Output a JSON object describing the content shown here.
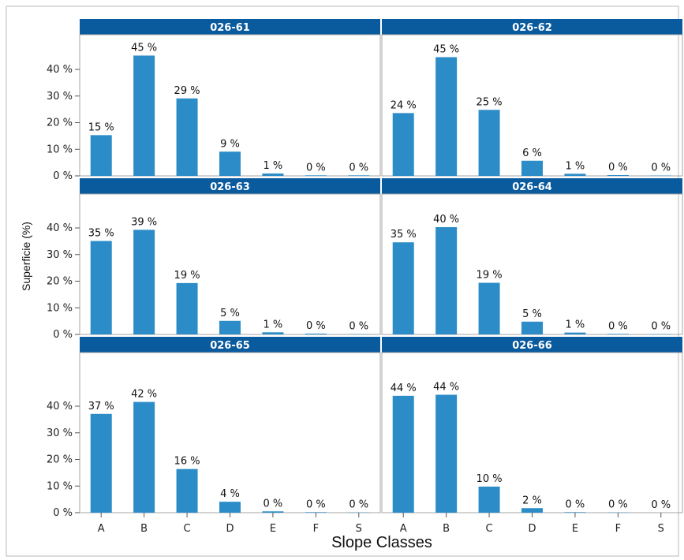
{
  "chart_data": {
    "type": "bar",
    "layout": "facet-grid-3x2",
    "xlabel": "Slope Classes",
    "ylabel": "Superficie (%)",
    "categories": [
      "A",
      "B",
      "C",
      "D",
      "E",
      "F",
      "S"
    ],
    "ylim": [
      0,
      50
    ],
    "yticks": [
      0,
      10,
      20,
      30,
      40
    ],
    "ytick_suffix": " %",
    "value_suffix": " %",
    "grid": false,
    "colors": {
      "bar": "#2b8cc8",
      "strip": "#0a5a9e",
      "strip_text": "#ffffff",
      "panel_border": "#a6a6a6",
      "outer_frame": "#b8b8b8"
    },
    "panels": [
      {
        "title": "026-61",
        "values": [
          15.3,
          45.2,
          29.1,
          9.1,
          0.9,
          0.2,
          0.2
        ],
        "labels": [
          "15 %",
          "45 %",
          "29 %",
          "9 %",
          "1 %",
          "0 %",
          "0 %"
        ]
      },
      {
        "title": "026-62",
        "values": [
          23.6,
          44.6,
          24.8,
          5.7,
          0.8,
          0.3,
          0.1
        ],
        "labels": [
          "24 %",
          "45 %",
          "25 %",
          "6 %",
          "1 %",
          "0 %",
          "0 %"
        ]
      },
      {
        "title": "026-63",
        "values": [
          35.1,
          39.3,
          19.3,
          5.1,
          0.8,
          0.3,
          0.1
        ],
        "labels": [
          "35 %",
          "39 %",
          "19 %",
          "5 %",
          "1 %",
          "0 %",
          "0 %"
        ]
      },
      {
        "title": "026-64",
        "values": [
          34.6,
          40.3,
          19.4,
          4.8,
          0.7,
          0.2,
          0.1
        ],
        "labels": [
          "35 %",
          "40 %",
          "19 %",
          "5 %",
          "1 %",
          "0 %",
          "0 %"
        ]
      },
      {
        "title": "026-65",
        "values": [
          37.1,
          41.6,
          16.4,
          4.1,
          0.5,
          0.2,
          0.1
        ],
        "labels": [
          "37 %",
          "42 %",
          "16 %",
          "4 %",
          "0 %",
          "0 %",
          "0 %"
        ]
      },
      {
        "title": "026-66",
        "values": [
          43.9,
          44.3,
          9.8,
          1.7,
          0.2,
          0.1,
          0.0
        ],
        "labels": [
          "44 %",
          "44 %",
          "10 %",
          "2 %",
          "0 %",
          "0 %",
          "0 %"
        ]
      }
    ]
  }
}
